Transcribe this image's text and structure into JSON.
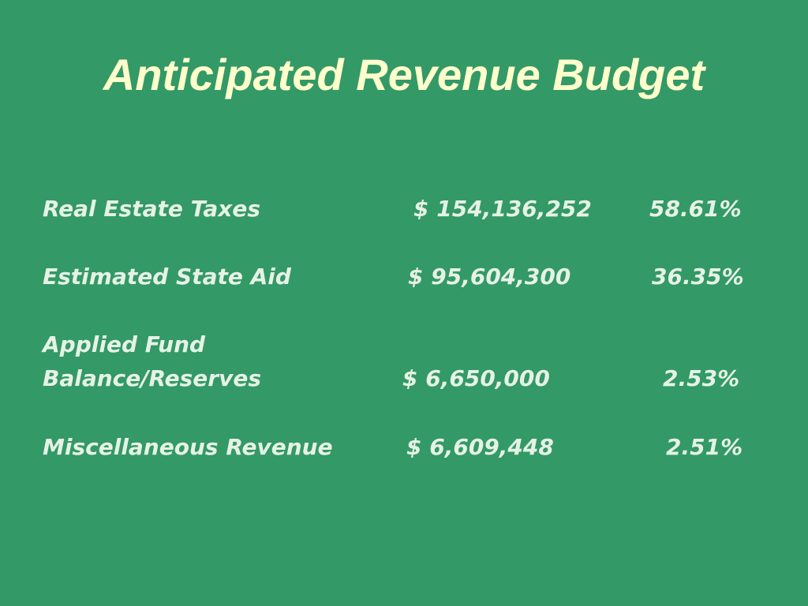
{
  "slide": {
    "title": "Anticipated Revenue Budget",
    "rows": [
      {
        "label_line1": "Real Estate Taxes",
        "label_line2": "",
        "amount": "$ 154,136,252",
        "percent": "58.61%"
      },
      {
        "label_line1": "Estimated State Aid",
        "label_line2": "",
        "amount": "$ 95,604,300",
        "percent": "36.35%"
      },
      {
        "label_line1": "Applied Fund",
        "label_line2": "Balance/Reserves",
        "amount": "$ 6,650,000",
        "percent": "2.53%"
      },
      {
        "label_line1": "Miscellaneous Revenue",
        "label_line2": "",
        "amount": "$ 6,609,448",
        "percent": "2.51%"
      }
    ]
  },
  "colors": {
    "background": "#339966",
    "title": "#ffffcc",
    "body_text": "#e6f2e6"
  }
}
